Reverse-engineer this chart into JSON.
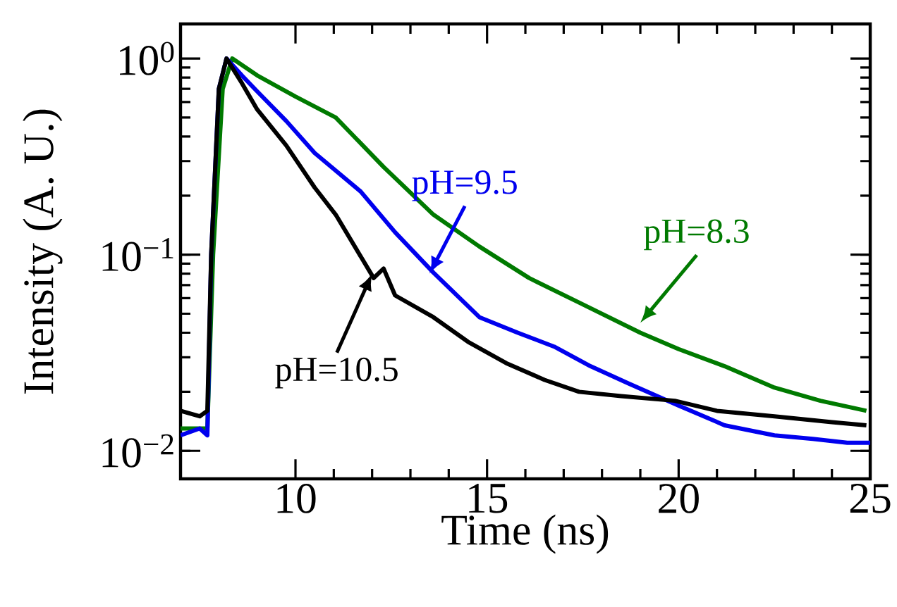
{
  "chart_data": {
    "type": "line",
    "xlabel": "Time (ns)",
    "ylabel": "Intensity (A. U.)",
    "xlim": [
      7,
      25
    ],
    "ylim": [
      0.0072,
      1.5
    ],
    "log": "y",
    "xticks": [
      10,
      15,
      20,
      25
    ],
    "yticks": [
      {
        "value": 0.01,
        "label": "10$^{−2}$"
      },
      {
        "value": 0.1,
        "label": "10$^{−1}$"
      },
      {
        "value": 1,
        "label": "10$^{0}$"
      }
    ],
    "grid": false,
    "marker": "none",
    "line_style": "solid",
    "series": [
      {
        "color": "#007a00",
        "x": [
          7,
          7.7,
          7.85,
          8.1,
          8.35,
          9,
          10,
          11.05,
          12.3,
          13.6,
          14.8,
          16.1,
          17.4,
          19.0,
          20,
          21.2,
          22.5,
          23.7,
          24.9
        ],
        "values": [
          0.013,
          0.013,
          0.1,
          0.7,
          1.0,
          0.82,
          0.64,
          0.5,
          0.28,
          0.16,
          0.11,
          0.076,
          0.057,
          0.04,
          0.033,
          0.027,
          0.021,
          0.018,
          0.016
        ]
      },
      {
        "color": "#0000ee",
        "x": [
          7,
          7.5,
          7.7,
          7.8,
          8.0,
          8.2,
          8.6,
          9.0,
          9.76,
          10.5,
          11.7,
          12.6,
          13.6,
          14.8,
          15.8,
          16.75,
          17.7,
          18.7,
          20,
          21.2,
          22.5,
          23.5,
          24.4,
          25
        ],
        "values": [
          0.012,
          0.013,
          0.012,
          0.1,
          0.7,
          1.0,
          0.82,
          0.68,
          0.48,
          0.33,
          0.21,
          0.13,
          0.081,
          0.048,
          0.04,
          0.034,
          0.027,
          0.022,
          0.017,
          0.0135,
          0.012,
          0.0115,
          0.011,
          0.011
        ]
      },
      {
        "color": "#000000",
        "x": [
          7,
          7.5,
          7.7,
          7.8,
          8.0,
          8.2,
          8.6,
          9.0,
          9.76,
          10.5,
          11.05,
          12.04,
          12.3,
          12.6,
          13.6,
          14.5,
          15.5,
          16.5,
          17.4,
          18.5,
          19.9,
          21,
          22.5,
          24,
          24.9
        ],
        "values": [
          0.016,
          0.015,
          0.016,
          0.1,
          0.7,
          1.0,
          0.75,
          0.55,
          0.36,
          0.22,
          0.16,
          0.076,
          0.085,
          0.062,
          0.048,
          0.036,
          0.028,
          0.023,
          0.02,
          0.019,
          0.018,
          0.016,
          0.015,
          0.014,
          0.0135
        ]
      }
    ],
    "annotations": [
      {
        "text": "pH=8.3",
        "x": 19.0,
        "y": 0.045
      },
      {
        "text": "pH=9.5",
        "x": 13.5,
        "y": 0.08
      },
      {
        "text": "pH=10.5",
        "x": 12.0,
        "y": 0.08
      }
    ]
  }
}
